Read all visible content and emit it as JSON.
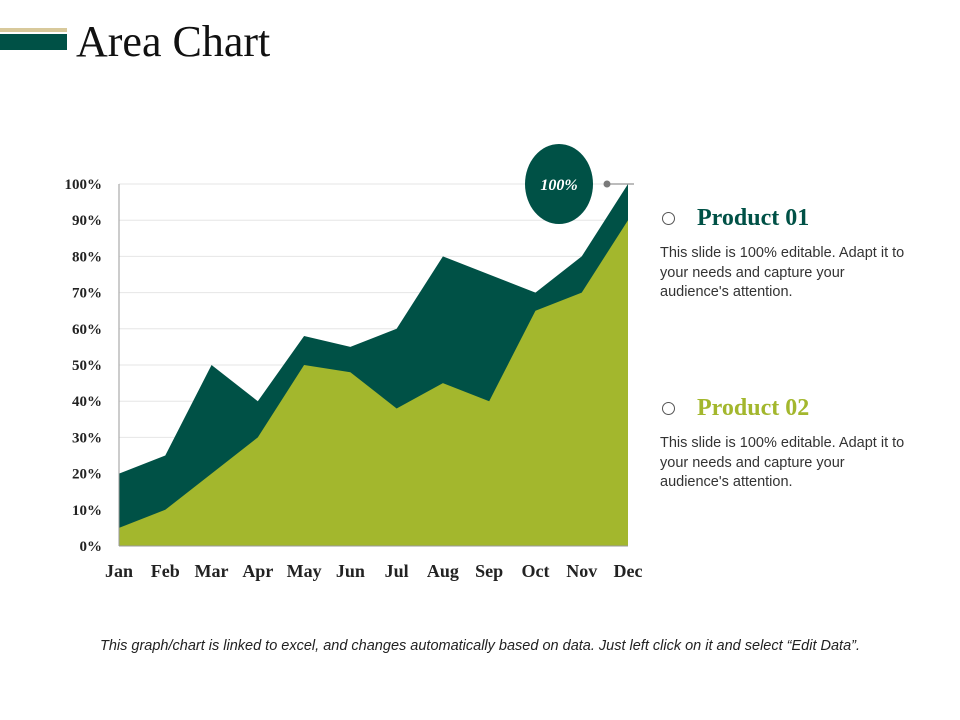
{
  "page": {
    "title": "Area Chart"
  },
  "colors": {
    "dark": "#005146",
    "green": "#a3b72d",
    "accent": "#d8c99b"
  },
  "chart_data": {
    "type": "area",
    "title": "",
    "categories": [
      "Jan",
      "Feb",
      "Mar",
      "Apr",
      "May",
      "Jun",
      "Jul",
      "Aug",
      "Sep",
      "Oct",
      "Nov",
      "Dec"
    ],
    "series": [
      {
        "name": "Product 01",
        "values": [
          20,
          25,
          50,
          40,
          58,
          55,
          60,
          80,
          75,
          70,
          80,
          100
        ]
      },
      {
        "name": "Product 02",
        "values": [
          5,
          10,
          20,
          30,
          50,
          48,
          38,
          45,
          40,
          65,
          70,
          90
        ]
      }
    ],
    "ylim": [
      0,
      100
    ],
    "yticks": [
      "0%",
      "10%",
      "20%",
      "30%",
      "40%",
      "50%",
      "60%",
      "70%",
      "80%",
      "90%",
      "100%"
    ],
    "grid": true,
    "annotation": {
      "text": "100%",
      "category": "Dec",
      "value": 100
    }
  },
  "legend": [
    {
      "name": "Product 01",
      "description": "This slide is 100% editable. Adapt it to your needs and capture your audience's attention."
    },
    {
      "name": "Product 02",
      "description": "This slide is 100% editable. Adapt it to your needs and capture your audience's attention."
    }
  ],
  "footnote": "This graph/chart is linked to excel, and changes automatically based on data. Just left click on it and select “Edit Data”."
}
